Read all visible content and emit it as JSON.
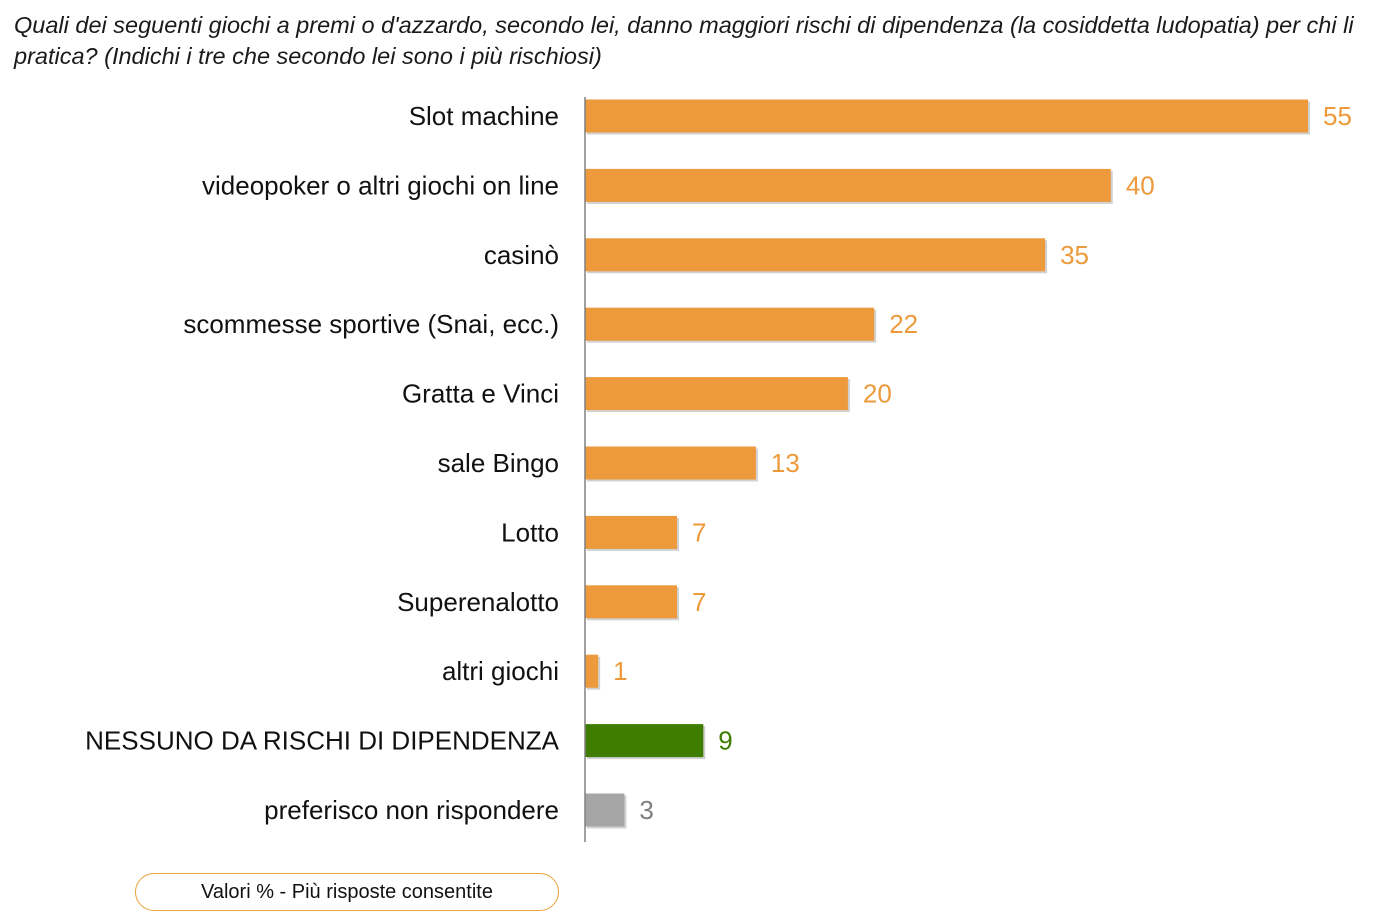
{
  "question": "Quali dei seguenti giochi a premi o d'azzardo, secondo lei, danno maggiori rischi di dipendenza (la cosiddetta ludopatia) per chi li pratica? (Indichi i tre che secondo lei sono i più rischiosi)",
  "footnote": "Valori % - Più risposte consentite",
  "colors": {
    "orange": "#ec9a3c",
    "green": "#3f7d00",
    "gray": "#a6a6a6",
    "orange_label": "#ec9a3c",
    "green_label": "#3f7d00",
    "gray_label": "#7f7f7f",
    "axis": "#808080"
  },
  "chart_data": {
    "type": "bar",
    "orientation": "horizontal",
    "title": "",
    "xlabel": "",
    "ylabel": "",
    "xlim": [
      0,
      55
    ],
    "grid": false,
    "legend": "none",
    "categories": [
      "Slot machine",
      "videopoker o altri giochi on line",
      "casinò",
      "scommesse sportive (Snai, ecc.)",
      "Gratta e Vinci",
      "sale Bingo",
      "Lotto",
      "Superenalotto",
      "altri giochi",
      "NESSUNO DA RISCHI DI DIPENDENZA",
      "preferisco non rispondere"
    ],
    "values": [
      55,
      40,
      35,
      22,
      20,
      13,
      7,
      7,
      1,
      9,
      3
    ],
    "bar_colors": [
      "orange",
      "orange",
      "orange",
      "orange",
      "orange",
      "orange",
      "orange",
      "orange",
      "orange",
      "green",
      "gray"
    ]
  }
}
